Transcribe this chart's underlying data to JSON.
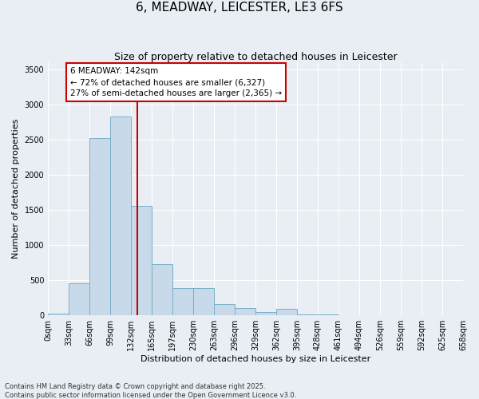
{
  "title": "6, MEADWAY, LEICESTER, LE3 6FS",
  "subtitle": "Size of property relative to detached houses in Leicester",
  "xlabel": "Distribution of detached houses by size in Leicester",
  "ylabel": "Number of detached properties",
  "bar_color": "#c8daea",
  "bar_edge_color": "#7aafc8",
  "background_color": "#e8eef4",
  "grid_color": "#ffffff",
  "annotation_line_color": "#cc0000",
  "annotation_box_color": "#cc0000",
  "annotation_text": "6 MEADWAY: 142sqm\n← 72% of detached houses are smaller (6,327)\n27% of semi-detached houses are larger (2,365) →",
  "property_sqm": 142,
  "bin_width": 33,
  "num_bins": 20,
  "bar_heights": [
    20,
    460,
    2520,
    2830,
    1560,
    730,
    390,
    390,
    160,
    100,
    50,
    90,
    10,
    10,
    5,
    5,
    2,
    2,
    1,
    1
  ],
  "ylim": [
    0,
    3600
  ],
  "yticks": [
    0,
    500,
    1000,
    1500,
    2000,
    2500,
    3000,
    3500
  ],
  "xtick_labels": [
    "0sqm",
    "33sqm",
    "66sqm",
    "99sqm",
    "132sqm",
    "165sqm",
    "197sqm",
    "230sqm",
    "263sqm",
    "296sqm",
    "329sqm",
    "362sqm",
    "395sqm",
    "428sqm",
    "461sqm",
    "494sqm",
    "526sqm",
    "559sqm",
    "592sqm",
    "625sqm",
    "658sqm"
  ],
  "footnote": "Contains HM Land Registry data © Crown copyright and database right 2025.\nContains public sector information licensed under the Open Government Licence v3.0.",
  "title_fontsize": 11,
  "subtitle_fontsize": 9,
  "label_fontsize": 8,
  "tick_fontsize": 7,
  "footnote_fontsize": 6,
  "annotation_fontsize": 7.5
}
